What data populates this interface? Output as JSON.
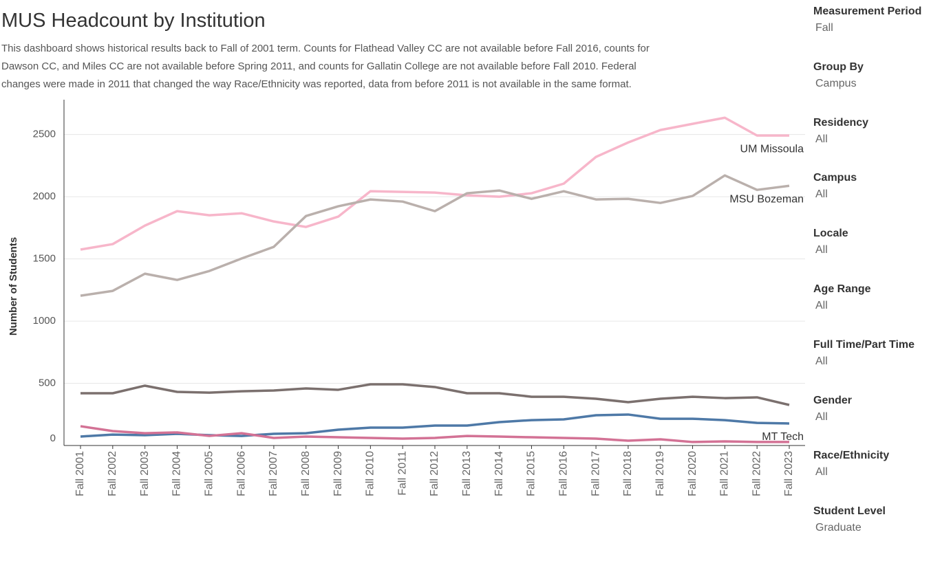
{
  "chart_data": {
    "type": "line",
    "title": "MUS Headcount by Institution",
    "subtitle": [
      "This dashboard shows historical results back to Fall of 2001 term.  Counts for Flathead Valley CC are not available before Fall 2016, counts for",
      "Dawson CC, and Miles CC are not available before Spring 2011, and counts for Gallatin College are not available before Fall 2010.  Federal",
      "changes were made in 2011 that changed the way Race/Ethnicity was reported, data from before 2011 is not available in the same format."
    ],
    "y_label": "Number of Students",
    "categories": [
      "Fall 2001",
      "Fall 2002",
      "Fall 2003",
      "Fall 2004",
      "Fall 2005",
      "Fall 2006",
      "Fall 2007",
      "Fall 2008",
      "Fall 2009",
      "Fall 2010",
      "Fall 2011",
      "Fall 2012",
      "Fall 2013",
      "Fall 2014",
      "Fall 2015",
      "Fall 2016",
      "Fall 2017",
      "Fall 2018",
      "Fall 2019",
      "Fall 2020",
      "Fall 2021",
      "Fall 2022",
      "Fall 2023"
    ],
    "series": [
      {
        "name": "UM Missoula",
        "color": "#f7b6ca",
        "values": [
          1575,
          1619,
          1768,
          1884,
          1851,
          1867,
          1801,
          1757,
          1840,
          2044,
          2039,
          2033,
          2011,
          2000,
          2028,
          2105,
          2320,
          2436,
          2536,
          2586,
          2635,
          2492,
          2492
        ]
      },
      {
        "name": "MSU Bozeman",
        "color": "#bab0ac",
        "values": [
          1204,
          1243,
          1381,
          1331,
          1403,
          1503,
          1597,
          1845,
          1923,
          1978,
          1961,
          1884,
          2028,
          2050,
          1983,
          2044,
          1978,
          1983,
          1950,
          2006,
          2171,
          2055,
          2088
        ]
      },
      {
        "color": "#7b706e",
        "values": [
          420,
          420,
          481,
          431,
          425,
          436,
          442,
          459,
          448,
          492,
          492,
          470,
          420,
          420,
          392,
          392,
          376,
          348,
          376,
          392,
          381,
          387,
          326
        ]
      },
      {
        "name": "MT Tech",
        "color": "#4e79a7",
        "values": [
          72,
          88,
          83,
          94,
          83,
          77,
          94,
          99,
          127,
          144,
          144,
          160,
          160,
          188,
          204,
          210,
          243,
          249,
          215,
          215,
          204,
          182,
          177
        ]
      },
      {
        "color": "#d37295",
        "values": [
          155,
          116,
          99,
          105,
          77,
          99,
          61,
          72,
          66,
          61,
          55,
          61,
          77,
          72,
          66,
          61,
          55,
          39,
          50,
          28,
          33,
          28,
          28
        ]
      }
    ],
    "ylim": [
      0,
      2780
    ],
    "yticks": [
      0,
      500,
      1000,
      1500,
      2000,
      2500
    ],
    "grid": true
  },
  "filters": [
    {
      "label": "Measurement Period",
      "value": "Fall"
    },
    {
      "label": "Group By",
      "value": "Campus"
    },
    {
      "label": "Residency",
      "value": "All"
    },
    {
      "label": "Campus",
      "value": "All"
    },
    {
      "label": "Locale",
      "value": "All"
    },
    {
      "label": "Age Range",
      "value": "All"
    },
    {
      "label": "Full Time/Part Time",
      "value": "All"
    },
    {
      "label": "Gender",
      "value": "All"
    },
    {
      "label": "Race/Ethnicity",
      "value": "All"
    },
    {
      "label": "Student Level",
      "value": "Graduate"
    }
  ]
}
